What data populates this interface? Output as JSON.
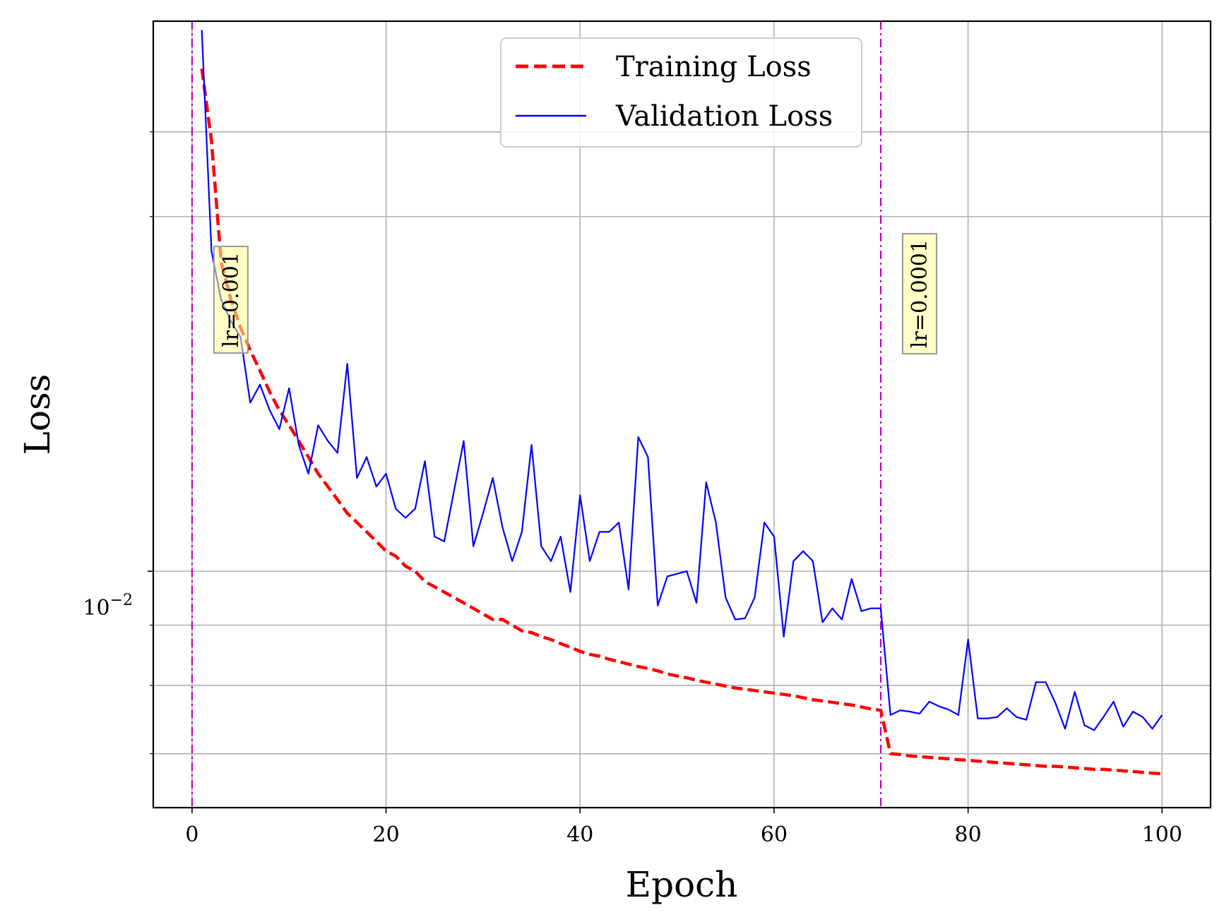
{
  "chart_data": {
    "type": "line",
    "title": "",
    "xlabel": "Epoch",
    "ylabel": "Loss",
    "yscale": "log",
    "xlim": [
      -4,
      105
    ],
    "ylim": [
      0.0063,
      0.0293
    ],
    "x_ticks": [
      0,
      20,
      40,
      60,
      80,
      100
    ],
    "x_tick_labels": [
      "0",
      "20",
      "40",
      "60",
      "80",
      "100"
    ],
    "y_major_tick_value": 0.01,
    "y_major_tick_base": "10",
    "y_major_tick_exponent": "−2",
    "y_minor_ticks": [
      0.007,
      0.008,
      0.009,
      0.02
    ],
    "y_grid_extra": [
      0.0236
    ],
    "grid": true,
    "legend": {
      "position": "top-center"
    },
    "series": [
      {
        "name": "Training Loss",
        "color": "#ff0000",
        "style": "dashed",
        "x": [
          1,
          2,
          3,
          4,
          5,
          6,
          7,
          8,
          9,
          10,
          11,
          12,
          13,
          14,
          15,
          16,
          17,
          18,
          19,
          20,
          21,
          22,
          23,
          24,
          25,
          26,
          27,
          28,
          29,
          30,
          31,
          32,
          33,
          34,
          35,
          36,
          37,
          38,
          39,
          40,
          41,
          42,
          43,
          44,
          45,
          46,
          47,
          48,
          49,
          50,
          51,
          52,
          53,
          54,
          55,
          56,
          57,
          58,
          59,
          60,
          61,
          62,
          63,
          64,
          65,
          66,
          67,
          68,
          69,
          70,
          71,
          72,
          73,
          74,
          75,
          76,
          77,
          78,
          79,
          80,
          81,
          82,
          83,
          84,
          85,
          86,
          87,
          88,
          89,
          90,
          91,
          92,
          93,
          94,
          95,
          96,
          97,
          98,
          99,
          100
        ],
        "values": [
          0.0267,
          0.0232,
          0.0183,
          0.017,
          0.0161,
          0.0154,
          0.0148,
          0.0142,
          0.0137,
          0.0133,
          0.0129,
          0.0125,
          0.0121,
          0.0118,
          0.0115,
          0.0112,
          0.011,
          0.0108,
          0.0106,
          0.0104,
          0.0103,
          0.0101,
          0.01,
          0.0098,
          0.0097,
          0.0096,
          0.0095,
          0.0094,
          0.0093,
          0.0092,
          0.0091,
          0.0091,
          0.009,
          0.0089,
          0.00887,
          0.0088,
          0.00875,
          0.00868,
          0.00862,
          0.00855,
          0.0085,
          0.00847,
          0.00842,
          0.00838,
          0.00834,
          0.0083,
          0.00827,
          0.00823,
          0.00818,
          0.00815,
          0.00812,
          0.00808,
          0.00805,
          0.00802,
          0.00799,
          0.00796,
          0.00794,
          0.00792,
          0.0079,
          0.00788,
          0.00786,
          0.00784,
          0.00781,
          0.00778,
          0.00776,
          0.00774,
          0.00772,
          0.0077,
          0.00767,
          0.00764,
          0.00762,
          0.007,
          0.00699,
          0.00697,
          0.00696,
          0.00695,
          0.00694,
          0.00693,
          0.00692,
          0.00691,
          0.0069,
          0.00689,
          0.00688,
          0.00687,
          0.00686,
          0.00685,
          0.00684,
          0.00683,
          0.00683,
          0.00682,
          0.00681,
          0.0068,
          0.00679,
          0.00679,
          0.00678,
          0.00677,
          0.00676,
          0.00675,
          0.00674,
          0.00673
        ]
      },
      {
        "name": "Validation Loss",
        "color": "#0000ff",
        "style": "solid",
        "x": [
          1,
          2,
          3,
          4,
          5,
          6,
          7,
          8,
          9,
          10,
          11,
          12,
          13,
          14,
          15,
          16,
          17,
          18,
          19,
          20,
          21,
          22,
          23,
          24,
          25,
          26,
          27,
          28,
          29,
          30,
          31,
          32,
          33,
          34,
          35,
          36,
          37,
          38,
          39,
          40,
          41,
          42,
          43,
          44,
          45,
          46,
          47,
          48,
          49,
          50,
          51,
          52,
          53,
          54,
          55,
          56,
          57,
          58,
          59,
          60,
          61,
          62,
          63,
          64,
          65,
          66,
          67,
          68,
          69,
          70,
          71,
          72,
          73,
          74,
          75,
          76,
          77,
          78,
          79,
          80,
          81,
          82,
          83,
          84,
          85,
          86,
          87,
          88,
          89,
          90,
          91,
          92,
          93,
          94,
          95,
          96,
          97,
          98,
          99,
          100
        ],
        "values": [
          0.0288,
          0.0187,
          0.017,
          0.0163,
          0.0158,
          0.0139,
          0.0144,
          0.0137,
          0.0132,
          0.0143,
          0.0128,
          0.0121,
          0.0133,
          0.0129,
          0.0126,
          0.015,
          0.012,
          0.0125,
          0.0118,
          0.0121,
          0.0113,
          0.0111,
          0.0113,
          0.0124,
          0.0107,
          0.0106,
          0.0117,
          0.0129,
          0.0105,
          0.0112,
          0.012,
          0.0109,
          0.0102,
          0.0108,
          0.0128,
          0.0105,
          0.0102,
          0.0107,
          0.0096,
          0.0116,
          0.0102,
          0.0108,
          0.0108,
          0.011,
          0.00965,
          0.013,
          0.0125,
          0.00935,
          0.0099,
          0.00995,
          0.01,
          0.0094,
          0.0119,
          0.011,
          0.0095,
          0.0091,
          0.00912,
          0.0095,
          0.011,
          0.0107,
          0.0088,
          0.0102,
          0.0104,
          0.0102,
          0.00905,
          0.0093,
          0.0091,
          0.00985,
          0.00925,
          0.0093,
          0.0093,
          0.00755,
          0.00762,
          0.0076,
          0.00757,
          0.00775,
          0.00768,
          0.00763,
          0.00755,
          0.00875,
          0.0075,
          0.0075,
          0.00752,
          0.00765,
          0.00752,
          0.00748,
          0.00805,
          0.00805,
          0.00773,
          0.00735,
          0.0079,
          0.0074,
          0.00733,
          0.00753,
          0.00775,
          0.00738,
          0.0076,
          0.00752,
          0.00735,
          0.00755
        ]
      }
    ],
    "vlines": [
      {
        "x": 0,
        "color": "#bf00bf",
        "style": "dashdot",
        "label": "lr=0.001",
        "label_x": 4,
        "label_y": 0.017
      },
      {
        "x": 71,
        "color": "#bf00bf",
        "style": "dashdot",
        "label": "lr=0.0001",
        "label_x": 75,
        "label_y": 0.0172
      }
    ]
  }
}
